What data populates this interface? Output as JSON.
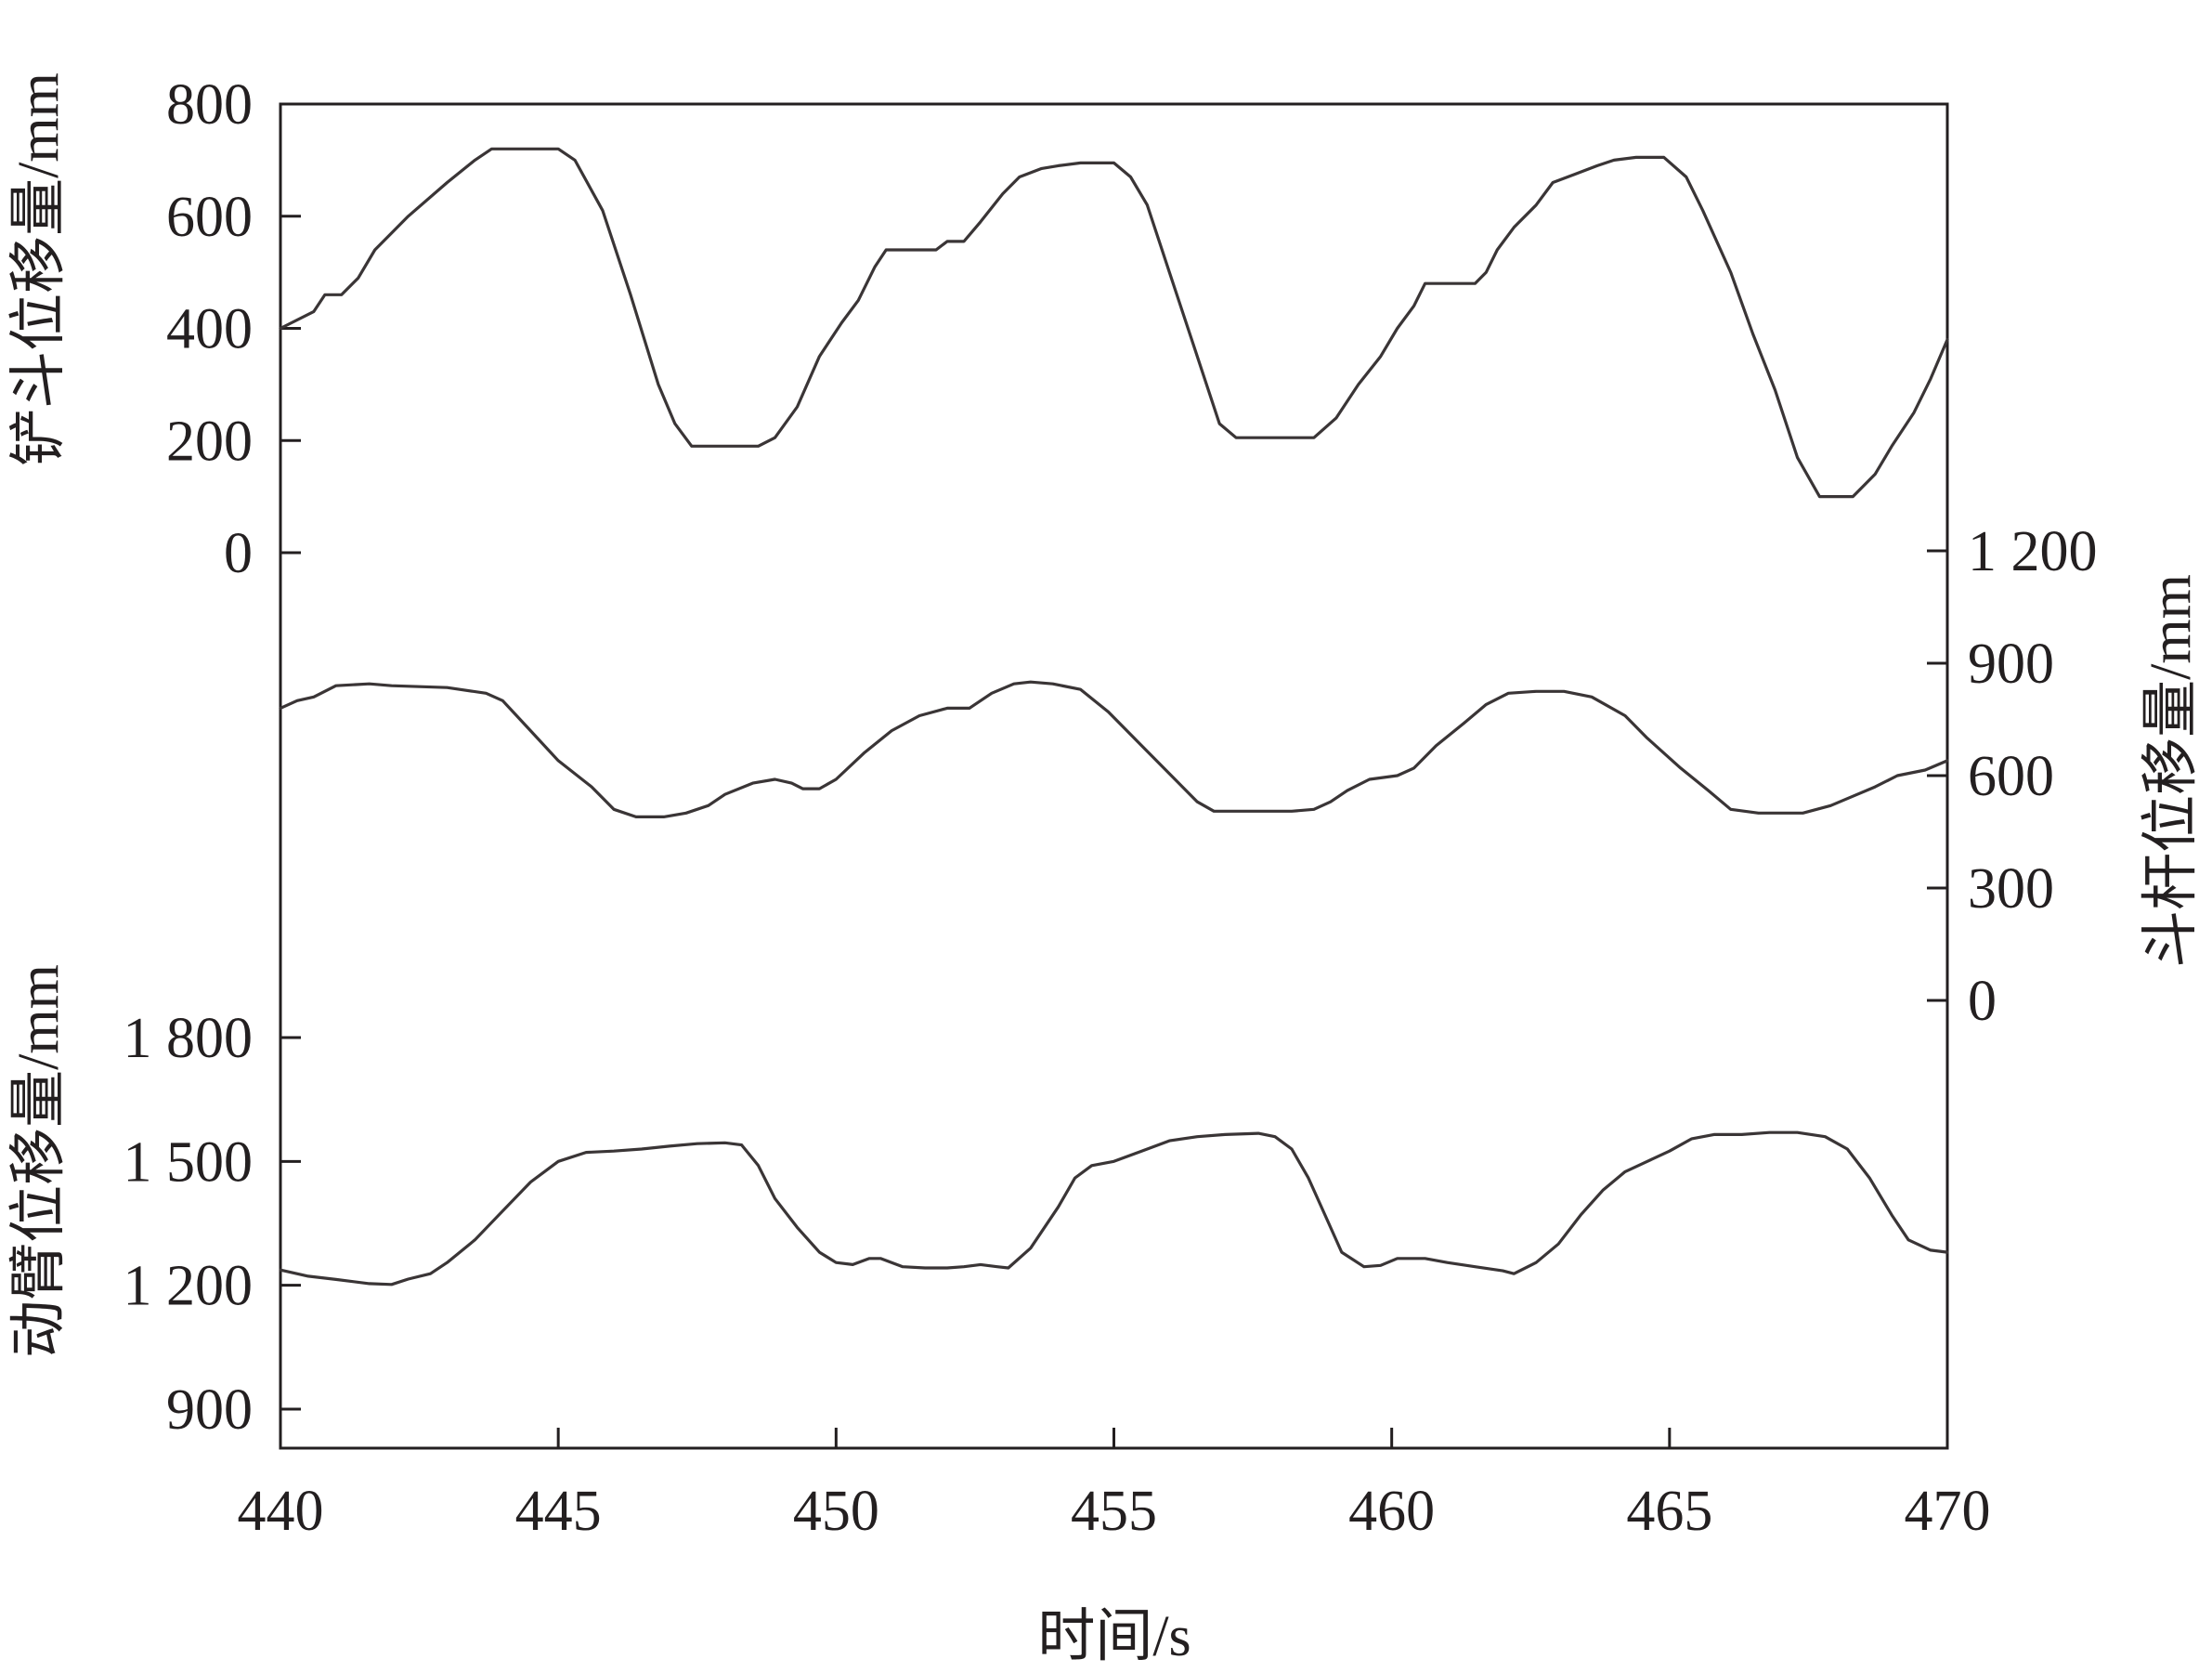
{
  "chart_data": {
    "type": "line",
    "colors": {
      "line": "#3a3536",
      "axis": "#231f20",
      "background": "#ffffff"
    },
    "x_axis": {
      "label": "时间/s",
      "range": [
        440,
        470
      ],
      "ticks": [
        {
          "value": 440,
          "label": "440"
        },
        {
          "value": 445,
          "label": "445"
        },
        {
          "value": 450,
          "label": "450"
        },
        {
          "value": 455,
          "label": "455"
        },
        {
          "value": 460,
          "label": "460"
        },
        {
          "value": 465,
          "label": "465"
        },
        {
          "value": 470,
          "label": "470"
        }
      ]
    },
    "y_axes": [
      {
        "id": "bucket",
        "side": "left",
        "label": "铲斗位移量/mm",
        "range": [
          0,
          800
        ],
        "ticks": [
          {
            "value": 0,
            "label": "0"
          },
          {
            "value": 200,
            "label": "200"
          },
          {
            "value": 400,
            "label": "400"
          },
          {
            "value": 600,
            "label": "600"
          },
          {
            "value": 800,
            "label": "800"
          }
        ]
      },
      {
        "id": "stick",
        "side": "right",
        "label": "斗杆位移量/mm",
        "range": [
          0,
          1200
        ],
        "ticks": [
          {
            "value": 0,
            "label": "0"
          },
          {
            "value": 300,
            "label": "300"
          },
          {
            "value": 600,
            "label": "600"
          },
          {
            "value": 900,
            "label": "900"
          },
          {
            "value": 1200,
            "label": "1 200"
          }
        ]
      },
      {
        "id": "boom",
        "side": "left",
        "label": "动臂位移量/mm",
        "range": [
          800,
          1900
        ],
        "ticks": [
          {
            "value": 900,
            "label": "900"
          },
          {
            "value": 1200,
            "label": "1 200"
          },
          {
            "value": 1500,
            "label": "1 500"
          },
          {
            "value": 1800,
            "label": "1 800"
          }
        ]
      }
    ],
    "series": [
      {
        "axis": "bucket",
        "points": [
          [
            440,
            400
          ],
          [
            440.6,
            430
          ],
          [
            440.8,
            460
          ],
          [
            441.1,
            460
          ],
          [
            441.4,
            490
          ],
          [
            441.7,
            540
          ],
          [
            442.3,
            600
          ],
          [
            443,
            660
          ],
          [
            443.5,
            700
          ],
          [
            443.8,
            720
          ],
          [
            444.5,
            720
          ],
          [
            445,
            720
          ],
          [
            445.3,
            700
          ],
          [
            445.8,
            610
          ],
          [
            446.3,
            460
          ],
          [
            446.8,
            300
          ],
          [
            447.1,
            230
          ],
          [
            447.4,
            190
          ],
          [
            448,
            190
          ],
          [
            448.6,
            190
          ],
          [
            448.9,
            205
          ],
          [
            449.3,
            260
          ],
          [
            449.7,
            350
          ],
          [
            450.1,
            410
          ],
          [
            450.4,
            450
          ],
          [
            450.7,
            510
          ],
          [
            450.9,
            540
          ],
          [
            451.2,
            540
          ],
          [
            451.6,
            540
          ],
          [
            451.8,
            540
          ],
          [
            452,
            555
          ],
          [
            452.3,
            555
          ],
          [
            452.6,
            590
          ],
          [
            453,
            640
          ],
          [
            453.3,
            670
          ],
          [
            453.7,
            685
          ],
          [
            454,
            690
          ],
          [
            454.4,
            695
          ],
          [
            455,
            695
          ],
          [
            455.3,
            670
          ],
          [
            455.6,
            620
          ],
          [
            456,
            500
          ],
          [
            456.5,
            350
          ],
          [
            456.9,
            230
          ],
          [
            457.2,
            205
          ],
          [
            457.7,
            205
          ],
          [
            458.2,
            205
          ],
          [
            458.6,
            205
          ],
          [
            459,
            240
          ],
          [
            459.4,
            300
          ],
          [
            459.8,
            350
          ],
          [
            460.1,
            400
          ],
          [
            460.4,
            440
          ],
          [
            460.6,
            480
          ],
          [
            461,
            480
          ],
          [
            461.5,
            480
          ],
          [
            461.7,
            500
          ],
          [
            461.9,
            540
          ],
          [
            462.2,
            580
          ],
          [
            462.6,
            620
          ],
          [
            462.9,
            660
          ],
          [
            463.3,
            675
          ],
          [
            463.7,
            690
          ],
          [
            464,
            700
          ],
          [
            464.4,
            705
          ],
          [
            464.9,
            705
          ],
          [
            465.3,
            670
          ],
          [
            465.6,
            610
          ],
          [
            466.1,
            500
          ],
          [
            466.5,
            390
          ],
          [
            466.9,
            290
          ],
          [
            467.3,
            170
          ],
          [
            467.7,
            100
          ],
          [
            468.3,
            100
          ],
          [
            468.7,
            140
          ],
          [
            469,
            190
          ],
          [
            469.4,
            250
          ],
          [
            469.7,
            310
          ],
          [
            470,
            380
          ]
        ]
      },
      {
        "axis": "stick",
        "points": [
          [
            440,
            780
          ],
          [
            440.3,
            800
          ],
          [
            440.6,
            810
          ],
          [
            441,
            840
          ],
          [
            441.6,
            845
          ],
          [
            442,
            840
          ],
          [
            443,
            835
          ],
          [
            443.7,
            820
          ],
          [
            444,
            800
          ],
          [
            444.5,
            720
          ],
          [
            445,
            640
          ],
          [
            445.6,
            570
          ],
          [
            446,
            510
          ],
          [
            446.4,
            490
          ],
          [
            446.9,
            490
          ],
          [
            447.3,
            500
          ],
          [
            447.7,
            520
          ],
          [
            448,
            550
          ],
          [
            448.5,
            580
          ],
          [
            448.9,
            590
          ],
          [
            449.2,
            580
          ],
          [
            449.4,
            565
          ],
          [
            449.7,
            565
          ],
          [
            450,
            590
          ],
          [
            450.5,
            660
          ],
          [
            451,
            720
          ],
          [
            451.5,
            760
          ],
          [
            452,
            780
          ],
          [
            452.4,
            780
          ],
          [
            452.8,
            820
          ],
          [
            453.2,
            845
          ],
          [
            453.5,
            850
          ],
          [
            453.9,
            845
          ],
          [
            454.4,
            830
          ],
          [
            454.9,
            770
          ],
          [
            455.5,
            680
          ],
          [
            456.1,
            590
          ],
          [
            456.5,
            530
          ],
          [
            456.8,
            505
          ],
          [
            457.5,
            505
          ],
          [
            458.2,
            505
          ],
          [
            458.6,
            510
          ],
          [
            458.9,
            530
          ],
          [
            459.2,
            560
          ],
          [
            459.6,
            590
          ],
          [
            460.1,
            600
          ],
          [
            460.4,
            620
          ],
          [
            460.8,
            680
          ],
          [
            461.3,
            740
          ],
          [
            461.7,
            790
          ],
          [
            462.1,
            820
          ],
          [
            462.6,
            825
          ],
          [
            463.1,
            825
          ],
          [
            463.6,
            810
          ],
          [
            464.2,
            760
          ],
          [
            464.6,
            700
          ],
          [
            465.2,
            620
          ],
          [
            465.7,
            560
          ],
          [
            466.1,
            510
          ],
          [
            466.6,
            500
          ],
          [
            467.4,
            500
          ],
          [
            467.9,
            520
          ],
          [
            468.3,
            545
          ],
          [
            468.7,
            570
          ],
          [
            469.1,
            600
          ],
          [
            469.6,
            615
          ],
          [
            470,
            640
          ]
        ]
      },
      {
        "axis": "boom",
        "points": [
          [
            440,
            1237
          ],
          [
            440.5,
            1222
          ],
          [
            441,
            1214
          ],
          [
            441.6,
            1204
          ],
          [
            442,
            1202
          ],
          [
            442.3,
            1215
          ],
          [
            442.7,
            1228
          ],
          [
            443,
            1255
          ],
          [
            443.5,
            1310
          ],
          [
            444,
            1380
          ],
          [
            444.5,
            1450
          ],
          [
            445,
            1500
          ],
          [
            445.5,
            1522
          ],
          [
            446,
            1525
          ],
          [
            446.5,
            1530
          ],
          [
            447,
            1537
          ],
          [
            447.5,
            1543
          ],
          [
            448,
            1545
          ],
          [
            448.3,
            1540
          ],
          [
            448.6,
            1490
          ],
          [
            448.9,
            1410
          ],
          [
            449.3,
            1340
          ],
          [
            449.7,
            1280
          ],
          [
            450,
            1255
          ],
          [
            450.3,
            1250
          ],
          [
            450.6,
            1265
          ],
          [
            450.8,
            1265
          ],
          [
            451.2,
            1245
          ],
          [
            451.6,
            1242
          ],
          [
            452,
            1242
          ],
          [
            452.3,
            1245
          ],
          [
            452.6,
            1250
          ],
          [
            452.9,
            1245
          ],
          [
            453.1,
            1242
          ],
          [
            453.5,
            1290
          ],
          [
            454,
            1390
          ],
          [
            454.3,
            1460
          ],
          [
            454.6,
            1490
          ],
          [
            455,
            1500
          ],
          [
            455.5,
            1525
          ],
          [
            456,
            1550
          ],
          [
            456.5,
            1560
          ],
          [
            457,
            1565
          ],
          [
            457.6,
            1568
          ],
          [
            457.9,
            1560
          ],
          [
            458.2,
            1530
          ],
          [
            458.5,
            1460
          ],
          [
            458.8,
            1370
          ],
          [
            459.1,
            1280
          ],
          [
            459.5,
            1245
          ],
          [
            459.8,
            1248
          ],
          [
            460.1,
            1265
          ],
          [
            460.6,
            1265
          ],
          [
            461,
            1255
          ],
          [
            461.5,
            1245
          ],
          [
            462,
            1235
          ],
          [
            462.2,
            1228
          ],
          [
            462.6,
            1255
          ],
          [
            463,
            1300
          ],
          [
            463.4,
            1370
          ],
          [
            463.8,
            1430
          ],
          [
            464.2,
            1475
          ],
          [
            464.6,
            1500
          ],
          [
            465,
            1525
          ],
          [
            465.4,
            1555
          ],
          [
            465.8,
            1565
          ],
          [
            466.3,
            1565
          ],
          [
            466.8,
            1570
          ],
          [
            467.3,
            1570
          ],
          [
            467.8,
            1560
          ],
          [
            468.2,
            1530
          ],
          [
            468.6,
            1460
          ],
          [
            469,
            1370
          ],
          [
            469.3,
            1310
          ],
          [
            469.7,
            1285
          ],
          [
            470,
            1280
          ]
        ]
      }
    ]
  }
}
